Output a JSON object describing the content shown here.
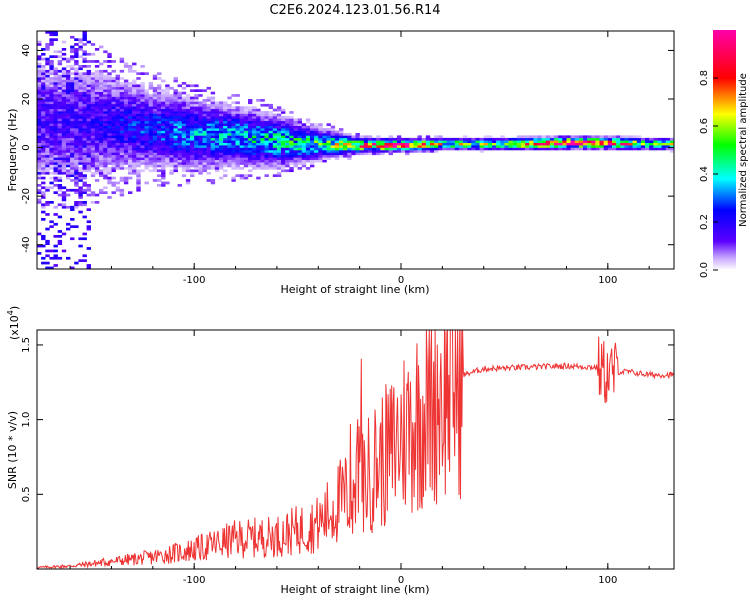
{
  "title": "C2E6.2024.123.01.56.R14",
  "chart_data": [
    {
      "type": "heatmap",
      "xlabel": "Height of straight line (km)",
      "ylabel": "Frequency (Hz)",
      "xlim": [
        -176,
        132
      ],
      "ylim": [
        -50,
        48
      ],
      "x_ticks": [
        -100,
        0,
        100
      ],
      "x_tick_labels": [
        "-100",
        "0",
        "100"
      ],
      "y_ticks": [
        -40,
        -20,
        0,
        20,
        40
      ],
      "y_tick_labels": [
        "-40",
        "-20",
        "0",
        "20",
        "40"
      ],
      "colorbar": {
        "label": "Normalized spectral amplitude",
        "range": [
          0,
          1
        ],
        "ticks": [
          0.0,
          0.2,
          0.4,
          0.6,
          0.8
        ],
        "tick_labels": [
          "0.0",
          "0.2",
          "0.4",
          "0.6",
          "0.8"
        ],
        "colors": [
          "#ffffff",
          "#5b00ff",
          "#0000ff",
          "#00ffff",
          "#00ff00",
          "#ffff00",
          "#ff0000",
          "#ff00aa"
        ]
      },
      "ridge": [
        {
          "x": -160,
          "f_center": 10,
          "f_spread": 12,
          "amplitude": 0.15
        },
        {
          "x": -140,
          "f_center": 9,
          "f_spread": 10,
          "amplitude": 0.2
        },
        {
          "x": -120,
          "f_center": 7,
          "f_spread": 8,
          "amplitude": 0.25
        },
        {
          "x": -100,
          "f_center": 5,
          "f_spread": 7,
          "amplitude": 0.3
        },
        {
          "x": -80,
          "f_center": 4,
          "f_spread": 6,
          "amplitude": 0.35
        },
        {
          "x": -60,
          "f_center": 2,
          "f_spread": 5,
          "amplitude": 0.4
        },
        {
          "x": -40,
          "f_center": 1,
          "f_spread": 3,
          "amplitude": 0.45
        },
        {
          "x": -20,
          "f_center": 0.5,
          "f_spread": 1.5,
          "amplitude": 0.7
        },
        {
          "x": 0,
          "f_center": 0.5,
          "f_spread": 1.2,
          "amplitude": 0.95
        },
        {
          "x": 20,
          "f_center": 1,
          "f_spread": 1.2,
          "amplitude": 0.5
        },
        {
          "x": 50,
          "f_center": 1,
          "f_spread": 1.2,
          "amplitude": 0.6
        },
        {
          "x": 80,
          "f_center": 1.5,
          "f_spread": 1.2,
          "amplitude": 0.9
        },
        {
          "x": 100,
          "f_center": 1.5,
          "f_spread": 1.2,
          "amplitude": 0.8
        },
        {
          "x": 120,
          "f_center": 1,
          "f_spread": 1.2,
          "amplitude": 0.5
        }
      ]
    },
    {
      "type": "line",
      "xlabel": "Height of straight line (km)",
      "ylabel": "SNR (10 * v/v)",
      "y_multiplier_label": "(x10",
      "y_multiplier_exp": "4",
      "y_multiplier_close": ")",
      "xlim": [
        -176,
        132
      ],
      "ylim": [
        0,
        1.6
      ],
      "x_ticks": [
        -100,
        0,
        100
      ],
      "x_tick_labels": [
        "-100",
        "0",
        "100"
      ],
      "y_ticks": [
        0.5,
        1.0,
        1.5
      ],
      "y_tick_labels": [
        "0.5",
        "1.0",
        "1.5"
      ],
      "series": [
        {
          "color": "#ee3333",
          "x": [
            -176,
            -160,
            -140,
            -120,
            -100,
            -80,
            -60,
            -40,
            -30,
            -20,
            -12,
            -5,
            0,
            10,
            20,
            30,
            40,
            60,
            80,
            95,
            100,
            105,
            110,
            120,
            132
          ],
          "y": [
            0.01,
            0.02,
            0.05,
            0.08,
            0.13,
            0.2,
            0.22,
            0.3,
            0.45,
            0.55,
            0.7,
            0.78,
            0.9,
            1.05,
            1.22,
            1.3,
            1.34,
            1.35,
            1.36,
            1.35,
            1.3,
            1.32,
            1.32,
            1.3,
            1.3
          ]
        }
      ]
    }
  ]
}
